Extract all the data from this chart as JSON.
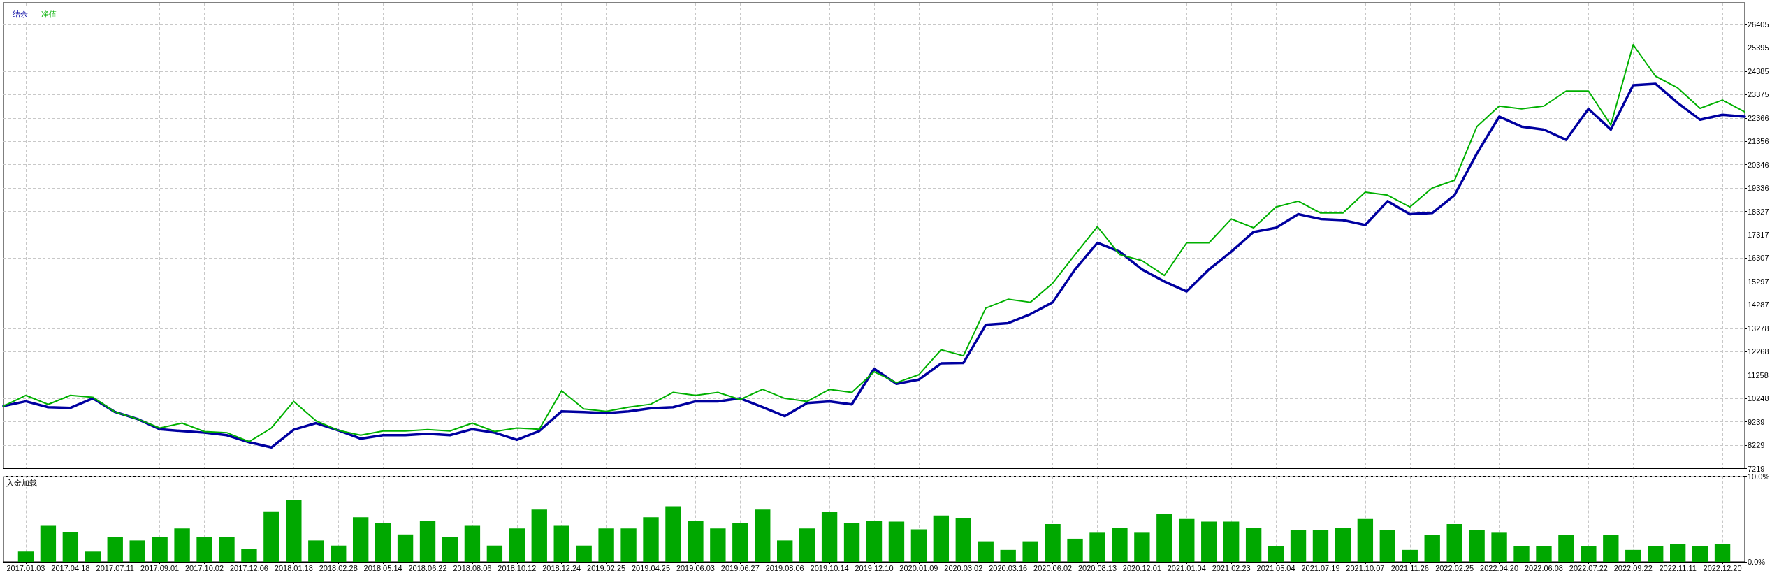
{
  "chart_data": [
    {
      "type": "line",
      "legend": "top left",
      "grid": true,
      "marker": "none",
      "line_style": "solid",
      "tick_labels": "y",
      "categories": [
        null,
        "2017.01.03",
        null,
        "2017.04.18",
        null,
        "2017.07.11",
        null,
        "2017.09.01",
        null,
        "2017.10.02",
        null,
        "2017.12.06",
        null,
        "2018.01.18",
        null,
        "2018.02.28",
        null,
        "2018.05.14",
        null,
        "2018.06.22",
        null,
        "2018.08.06",
        null,
        "2018.10.12",
        null,
        "2018.12.24",
        null,
        "2019.02.25",
        null,
        "2019.04.25",
        null,
        "2019.06.03",
        null,
        "2019.06.27",
        null,
        "2019.08.06",
        null,
        "2019.10.14",
        null,
        "2019.12.10",
        null,
        "2020.01.09",
        null,
        "2020.03.02",
        null,
        "2020.03.16",
        null,
        "2020.06.02",
        null,
        "2020.08.13",
        null,
        "2020.12.01",
        null,
        "2021.01.04",
        null,
        "2021.02.23",
        null,
        "2021.05.04",
        null,
        "2021.07.19",
        null,
        "2021.10.07",
        null,
        "2021.11.26",
        null,
        "2022.02.25",
        null,
        "2022.04.20",
        null,
        "2022.06.08",
        null,
        "2022.07.22",
        null,
        "2022.09.22",
        null,
        "2022.11.11",
        null,
        "2022.12.20",
        null
      ],
      "ylim": [
        7219,
        27340
      ],
      "yticks": [
        7219,
        8229,
        9239,
        10248,
        11258,
        12268,
        13278,
        14287,
        15297,
        16307,
        17317,
        18327,
        19336,
        20346,
        21356,
        22366,
        23375,
        24385,
        25395,
        26405
      ],
      "series": [
        {
          "name": "结余",
          "color": "#0000a0",
          "values": [
            9920,
            10120,
            9870,
            9840,
            10250,
            9660,
            9360,
            8920,
            8840,
            8770,
            8660,
            8360,
            8130,
            8900,
            9180,
            8870,
            8510,
            8660,
            8660,
            8720,
            8660,
            8920,
            8770,
            8460,
            8840,
            9690,
            9660,
            9610,
            9690,
            9820,
            9870,
            10120,
            10120,
            10250,
            9870,
            9480,
            10050,
            10120,
            9990,
            11530,
            10880,
            11060,
            11760,
            11780,
            13430,
            13500,
            13890,
            14400,
            15820,
            16970,
            16590,
            15820,
            15300,
            14870,
            15820,
            16590,
            17440,
            17620,
            18210,
            18000,
            17950,
            17740,
            18770,
            18210,
            18260,
            19030,
            20830,
            22420,
            21990,
            21860,
            21420,
            22760,
            21860,
            23780,
            23840,
            23010,
            22290,
            22500,
            22420
          ]
        },
        {
          "name": "净值",
          "color": "#00b000",
          "values": [
            9920,
            10380,
            9990,
            10380,
            10300,
            9660,
            9360,
            8970,
            9180,
            8820,
            8770,
            8380,
            8970,
            10120,
            9280,
            8870,
            8660,
            8840,
            8840,
            8900,
            8840,
            9180,
            8820,
            8970,
            8920,
            10580,
            9790,
            9690,
            9870,
            10000,
            10510,
            10380,
            10510,
            10200,
            10640,
            10250,
            10120,
            10640,
            10510,
            11400,
            10930,
            11270,
            12350,
            12090,
            14150,
            14530,
            14400,
            15230,
            16460,
            17670,
            16460,
            16200,
            15560,
            16970,
            16970,
            18000,
            17620,
            18520,
            18770,
            18260,
            18260,
            19160,
            19030,
            18520,
            19340,
            19670,
            21990,
            22880,
            22760,
            22880,
            23530,
            23530,
            22060,
            25530,
            24170,
            23660,
            22780,
            23140,
            22630
          ]
        }
      ]
    },
    {
      "type": "bar",
      "title": "入金加载",
      "grid": true,
      "categories": [
        null,
        "2017.01.03",
        null,
        "2017.04.18",
        null,
        "2017.07.11",
        null,
        "2017.09.01",
        null,
        "2017.10.02",
        null,
        "2017.12.06",
        null,
        "2018.01.18",
        null,
        "2018.02.28",
        null,
        "2018.05.14",
        null,
        "2018.06.22",
        null,
        "2018.08.06",
        null,
        "2018.10.12",
        null,
        "2018.12.24",
        null,
        "2019.02.25",
        null,
        "2019.04.25",
        null,
        "2019.06.03",
        null,
        "2019.06.27",
        null,
        "2019.08.06",
        null,
        "2019.10.14",
        null,
        "2019.12.10",
        null,
        "2020.01.09",
        null,
        "2020.03.02",
        null,
        "2020.03.16",
        null,
        "2020.06.02",
        null,
        "2020.08.13",
        null,
        "2020.12.01",
        null,
        "2021.01.04",
        null,
        "2021.02.23",
        null,
        "2021.05.04",
        null,
        "2021.07.19",
        null,
        "2021.10.07",
        null,
        "2021.11.26",
        null,
        "2022.02.25",
        null,
        "2022.04.20",
        null,
        "2022.06.08",
        null,
        "2022.07.22",
        null,
        "2022.09.22",
        null,
        "2022.11.11",
        null,
        "2022.12.20",
        null
      ],
      "ylim": [
        0,
        10
      ],
      "yticks": [
        {
          "value": 0,
          "label": "0.0%"
        },
        {
          "value": 10,
          "label": "10.0%"
        }
      ],
      "series": [
        {
          "color": "#00a800",
          "values": [
            null,
            1.2,
            4.2,
            3.5,
            1.2,
            2.9,
            2.5,
            2.9,
            3.9,
            2.9,
            2.9,
            1.5,
            5.9,
            7.2,
            2.5,
            1.9,
            5.2,
            4.5,
            3.2,
            4.8,
            2.9,
            4.2,
            1.9,
            3.9,
            6.1,
            4.2,
            1.9,
            3.9,
            3.9,
            5.2,
            6.5,
            4.8,
            3.9,
            4.5,
            6.1,
            2.5,
            3.9,
            5.8,
            4.5,
            4.8,
            4.7,
            3.8,
            5.4,
            5.1,
            2.4,
            1.4,
            2.4,
            4.4,
            2.7,
            3.4,
            4.0,
            3.4,
            5.6,
            5.0,
            4.7,
            4.7,
            4.0,
            1.8,
            3.7,
            3.7,
            4.0,
            5.0,
            3.7,
            1.4,
            3.1,
            4.4,
            3.7,
            3.4,
            1.8,
            1.8,
            3.1,
            1.8,
            3.1,
            1.4,
            1.8,
            2.1,
            1.8,
            2.1,
            null
          ]
        }
      ]
    }
  ]
}
